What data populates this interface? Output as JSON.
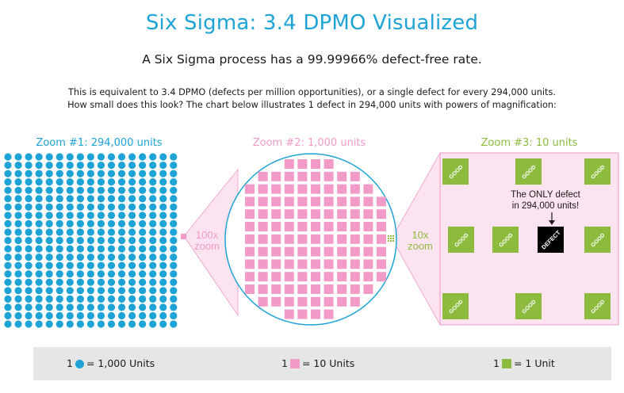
{
  "header": {
    "title": "Six Sigma: 3.4 DPMO Visualized",
    "subtitle": "A Six Sigma process has a 99.99966% defect-free rate.",
    "description_line1": "This is equivalent to 3.4 DPMO (defects per million opportunities), or a single defect for every 294,000 units.",
    "description_line2": "How small does this look? The chart below illustrates 1 defect in 294,000 units with powers of magnification:"
  },
  "panels": {
    "zoom1_label": "Zoom #1: 294,000 units",
    "zoom2_label": "Zoom #2: 1,000 units",
    "zoom3_label": "Zoom #3: 10 units"
  },
  "magnifiers": {
    "first_factor": "100x",
    "first_word": "zoom",
    "second_factor": "10x",
    "second_word": "zoom"
  },
  "units": {
    "good_label": "GOOD",
    "defect_label": "DEFECT",
    "callout_line1": "The ONLY defect",
    "callout_line2": "in 294,000 units!"
  },
  "legend": {
    "blue_prefix": "1",
    "blue_text": "= 1,000 Units",
    "pink_prefix": "1",
    "pink_text": "= 10 Units",
    "green_prefix": "1",
    "green_text": "= 1 Unit"
  },
  "colors": {
    "title": "#1ea3d6",
    "blue_dot": "#1ea3d6",
    "pink": "#f29ac8",
    "pink_light": "#fbe3ef",
    "green": "#8dbb3e",
    "defect": "#000000",
    "legend_bg": "#e6e6e6"
  }
}
